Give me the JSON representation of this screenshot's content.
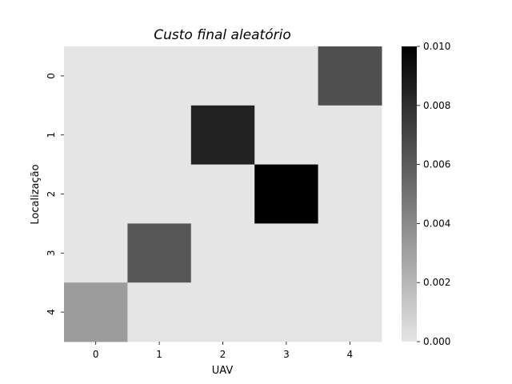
{
  "chart_data": {
    "type": "heatmap",
    "title": "Custo final aleatório",
    "xlabel": "UAV",
    "ylabel": "Localização",
    "x_categories": [
      "0",
      "1",
      "2",
      "3",
      "4"
    ],
    "y_categories": [
      "0",
      "1",
      "2",
      "3",
      "4"
    ],
    "values": [
      [
        0,
        0,
        0,
        0,
        0.0065
      ],
      [
        0,
        0,
        0.0085,
        0,
        0
      ],
      [
        0,
        0,
        0,
        0.01,
        0
      ],
      [
        0,
        0.0062,
        0,
        0,
        0
      ],
      [
        0.0032,
        0,
        0,
        0,
        0
      ]
    ],
    "colorbar": {
      "range": [
        0,
        0.01
      ],
      "tick_values": [
        0,
        0.002,
        0.004,
        0.006,
        0.008,
        0.01
      ],
      "tick_labels": [
        "0.000",
        "0.002",
        "0.004",
        "0.006",
        "0.008",
        "0.010"
      ],
      "colormap": "light-grey-to-black"
    },
    "colors": {
      "low": "#e5e5e5",
      "high": "#000000"
    },
    "grid": false
  }
}
